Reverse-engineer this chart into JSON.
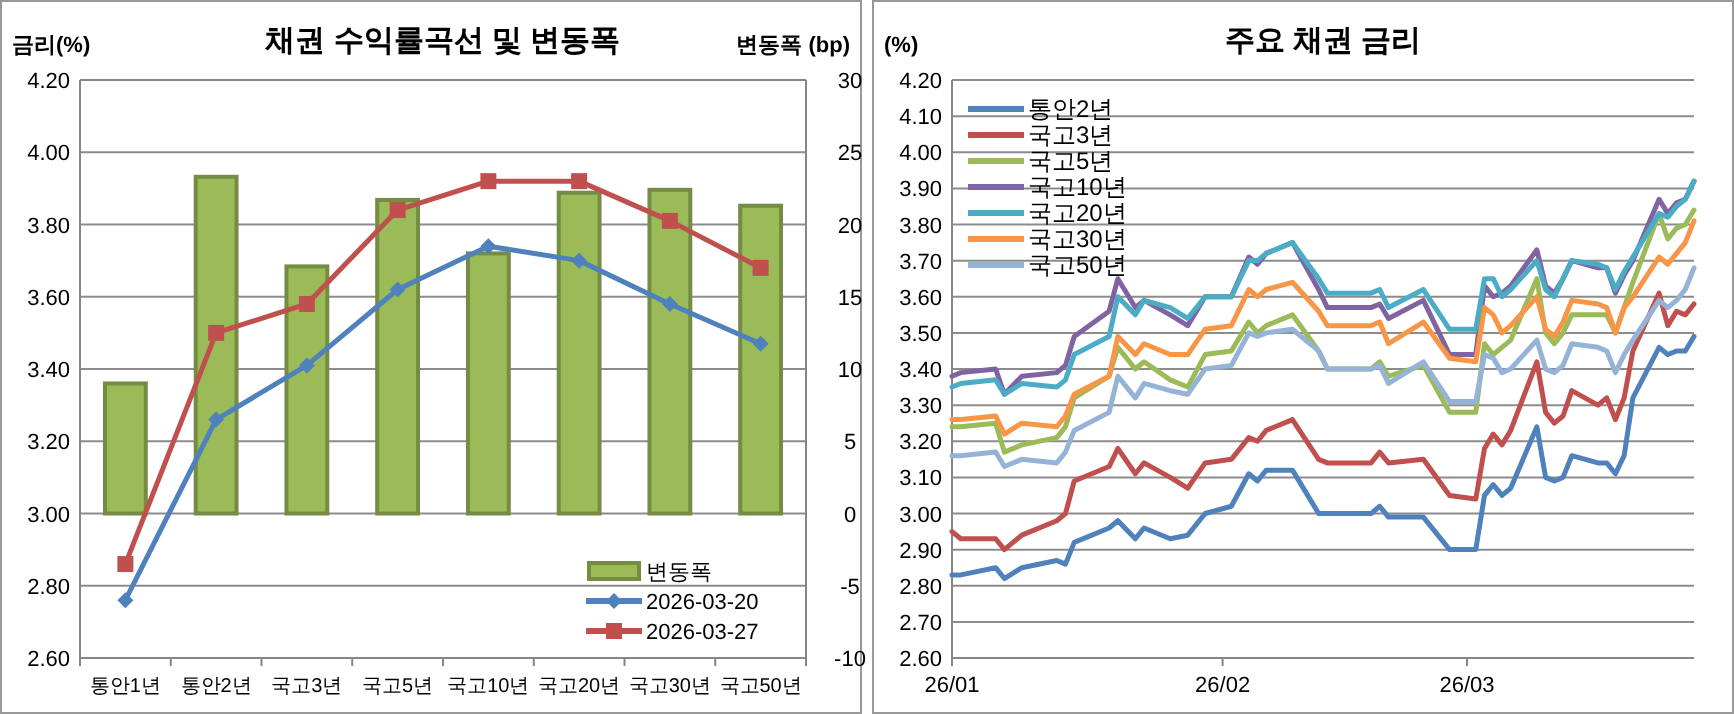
{
  "chart_data": [
    {
      "type": "bar",
      "title": "채권 수익률곡선 및 변동폭",
      "ylabel": "금리(%)",
      "y2label": "변동폭 (bp)",
      "categories": [
        "통안1년",
        "통안2년",
        "국고3년",
        "국고5년",
        "국고10년",
        "국고20년",
        "국고30년",
        "국고50년"
      ],
      "series": [
        {
          "name": "변동폭",
          "axis": "y2",
          "color": "#9bbb59",
          "values": [
            9,
            23.3,
            17.1,
            21.7,
            18,
            22.2,
            22.4,
            21.3
          ]
        },
        {
          "name": "2026-03-20",
          "type": "line",
          "marker": "diamond",
          "color": "#4f81bd",
          "values": [
            2.76,
            3.26,
            3.41,
            3.62,
            3.74,
            3.7,
            3.58,
            3.47
          ]
        },
        {
          "name": "2026-03-27",
          "type": "line",
          "marker": "square",
          "color": "#c0504d",
          "values": [
            2.86,
            3.5,
            3.58,
            3.84,
            3.92,
            3.92,
            3.81,
            3.68
          ]
        }
      ],
      "ylim": [
        2.6,
        4.2
      ],
      "yticks": [
        {
          "value": 2.6,
          "label": "2.60"
        },
        {
          "value": 2.8,
          "label": "2.80"
        },
        {
          "value": 3.0,
          "label": "3.00"
        },
        {
          "value": 3.2,
          "label": "3.20"
        },
        {
          "value": 3.4,
          "label": "3.40"
        },
        {
          "value": 3.6,
          "label": "3.60"
        },
        {
          "value": 3.8,
          "label": "3.80"
        },
        {
          "value": 4.0,
          "label": "4.00"
        },
        {
          "value": 4.2,
          "label": "4.20"
        }
      ],
      "y2lim": [
        -10,
        30
      ],
      "y2ticks": [
        -10,
        -5,
        0,
        5,
        10,
        15,
        20,
        25,
        30
      ],
      "grid": "y",
      "legend": "bottom right"
    },
    {
      "type": "line",
      "title": "주요 채권 금리",
      "ylabel": "(%)",
      "x": [
        "2026-01-01",
        "2026-01-02",
        "2026-01-06",
        "2026-01-07",
        "2026-01-09",
        "2026-01-13",
        "2026-01-14",
        "2026-01-15",
        "2026-01-19",
        "2026-01-20",
        "2026-01-22",
        "2026-01-23",
        "2026-01-26",
        "2026-01-28",
        "2026-01-30",
        "2026-02-02",
        "2026-02-04",
        "2026-02-05",
        "2026-02-06",
        "2026-02-09",
        "2026-02-12",
        "2026-02-13",
        "2026-02-18",
        "2026-02-19",
        "2026-02-20",
        "2026-02-24",
        "2026-02-27",
        "2026-03-02",
        "2026-03-03",
        "2026-03-04",
        "2026-03-05",
        "2026-03-06",
        "2026-03-09",
        "2026-03-10",
        "2026-03-11",
        "2026-03-12",
        "2026-03-13",
        "2026-03-16",
        "2026-03-17",
        "2026-03-18",
        "2026-03-19",
        "2026-03-20",
        "2026-03-23",
        "2026-03-24",
        "2026-03-25",
        "2026-03-26",
        "2026-03-27"
      ],
      "xlim": [
        "2026-01-01",
        "2026-03-27"
      ],
      "xticks": [
        {
          "value": "2026-01-01",
          "label": "26/01"
        },
        {
          "value": "2026-02-01",
          "label": "26/02"
        },
        {
          "value": "2026-03-01",
          "label": "26/03"
        }
      ],
      "ylim": [
        2.6,
        4.2
      ],
      "yticks": [
        {
          "value": 2.6,
          "label": "2.60"
        },
        {
          "value": 2.7,
          "label": "2.70"
        },
        {
          "value": 2.8,
          "label": "2.80"
        },
        {
          "value": 2.9,
          "label": "2.90"
        },
        {
          "value": 3.0,
          "label": "3.00"
        },
        {
          "value": 3.1,
          "label": "3.10"
        },
        {
          "value": 3.2,
          "label": "3.20"
        },
        {
          "value": 3.3,
          "label": "3.30"
        },
        {
          "value": 3.4,
          "label": "3.40"
        },
        {
          "value": 3.5,
          "label": "3.50"
        },
        {
          "value": 3.6,
          "label": "3.60"
        },
        {
          "value": 3.7,
          "label": "3.70"
        },
        {
          "value": 3.8,
          "label": "3.80"
        },
        {
          "value": 3.9,
          "label": "3.90"
        },
        {
          "value": 4.0,
          "label": "4.00"
        },
        {
          "value": 4.1,
          "label": "4.10"
        },
        {
          "value": 4.2,
          "label": "4.20"
        }
      ],
      "grid": "y",
      "legend": "top left",
      "series": [
        {
          "name": "통안2년",
          "color": "#4f81bd",
          "values": [
            2.83,
            2.83,
            2.85,
            2.82,
            2.85,
            2.87,
            2.86,
            2.92,
            2.96,
            2.98,
            2.93,
            2.96,
            2.93,
            2.94,
            3.0,
            3.02,
            3.11,
            3.09,
            3.12,
            3.12,
            3.0,
            3.0,
            3.0,
            3.02,
            2.99,
            2.99,
            2.9,
            2.9,
            3.05,
            3.08,
            3.05,
            3.07,
            3.24,
            3.1,
            3.09,
            3.1,
            3.16,
            3.14,
            3.14,
            3.11,
            3.16,
            3.32,
            3.46,
            3.44,
            3.45,
            3.45,
            3.49
          ]
        },
        {
          "name": "국고3년",
          "color": "#c0504d",
          "values": [
            2.95,
            2.93,
            2.93,
            2.9,
            2.94,
            2.98,
            3.0,
            3.09,
            3.13,
            3.18,
            3.11,
            3.14,
            3.1,
            3.07,
            3.14,
            3.15,
            3.21,
            3.2,
            3.23,
            3.26,
            3.15,
            3.14,
            3.14,
            3.17,
            3.14,
            3.15,
            3.05,
            3.04,
            3.18,
            3.22,
            3.19,
            3.23,
            3.42,
            3.28,
            3.25,
            3.27,
            3.34,
            3.3,
            3.32,
            3.26,
            3.32,
            3.45,
            3.61,
            3.52,
            3.56,
            3.55,
            3.58
          ]
        },
        {
          "name": "국고5년",
          "color": "#9bbb59",
          "values": [
            3.24,
            3.24,
            3.25,
            3.17,
            3.19,
            3.21,
            3.24,
            3.32,
            3.38,
            3.46,
            3.4,
            3.42,
            3.37,
            3.35,
            3.44,
            3.45,
            3.53,
            3.5,
            3.52,
            3.55,
            3.45,
            3.4,
            3.4,
            3.42,
            3.38,
            3.41,
            3.28,
            3.28,
            3.47,
            3.44,
            3.46,
            3.48,
            3.65,
            3.5,
            3.47,
            3.5,
            3.55,
            3.55,
            3.55,
            3.5,
            3.57,
            3.64,
            3.83,
            3.76,
            3.79,
            3.8,
            3.84
          ]
        },
        {
          "name": "국고10년",
          "color": "#8064a2",
          "values": [
            3.38,
            3.39,
            3.4,
            3.33,
            3.38,
            3.39,
            3.41,
            3.49,
            3.56,
            3.65,
            3.57,
            3.59,
            3.55,
            3.52,
            3.6,
            3.6,
            3.71,
            3.69,
            3.72,
            3.75,
            3.62,
            3.57,
            3.57,
            3.58,
            3.54,
            3.59,
            3.44,
            3.44,
            3.63,
            3.6,
            3.61,
            3.63,
            3.73,
            3.63,
            3.61,
            3.65,
            3.7,
            3.68,
            3.68,
            3.61,
            3.66,
            3.7,
            3.87,
            3.83,
            3.86,
            3.87,
            3.92
          ]
        },
        {
          "name": "국고20년",
          "color": "#4bacc6",
          "values": [
            3.35,
            3.36,
            3.37,
            3.33,
            3.36,
            3.35,
            3.37,
            3.44,
            3.49,
            3.6,
            3.55,
            3.59,
            3.57,
            3.54,
            3.6,
            3.6,
            3.7,
            3.7,
            3.72,
            3.75,
            3.65,
            3.61,
            3.61,
            3.62,
            3.57,
            3.62,
            3.51,
            3.51,
            3.65,
            3.65,
            3.6,
            3.62,
            3.7,
            3.62,
            3.6,
            3.65,
            3.7,
            3.69,
            3.68,
            3.62,
            3.67,
            3.71,
            3.83,
            3.82,
            3.85,
            3.87,
            3.92
          ]
        },
        {
          "name": "국고30년",
          "color": "#f79646",
          "values": [
            3.26,
            3.26,
            3.27,
            3.22,
            3.25,
            3.24,
            3.27,
            3.33,
            3.38,
            3.49,
            3.44,
            3.47,
            3.44,
            3.44,
            3.51,
            3.52,
            3.62,
            3.6,
            3.62,
            3.64,
            3.56,
            3.52,
            3.52,
            3.53,
            3.47,
            3.53,
            3.43,
            3.42,
            3.57,
            3.55,
            3.5,
            3.52,
            3.6,
            3.51,
            3.49,
            3.53,
            3.59,
            3.58,
            3.57,
            3.5,
            3.57,
            3.6,
            3.71,
            3.69,
            3.72,
            3.75,
            3.81
          ]
        },
        {
          "name": "국고50년",
          "color": "#95b3d7",
          "values": [
            3.16,
            3.16,
            3.17,
            3.13,
            3.15,
            3.14,
            3.17,
            3.23,
            3.28,
            3.38,
            3.32,
            3.36,
            3.34,
            3.33,
            3.4,
            3.41,
            3.5,
            3.49,
            3.5,
            3.51,
            3.45,
            3.4,
            3.4,
            3.41,
            3.36,
            3.42,
            3.31,
            3.31,
            3.44,
            3.43,
            3.39,
            3.4,
            3.48,
            3.4,
            3.39,
            3.41,
            3.47,
            3.46,
            3.45,
            3.39,
            3.44,
            3.48,
            3.59,
            3.57,
            3.59,
            3.62,
            3.68
          ]
        }
      ]
    }
  ]
}
